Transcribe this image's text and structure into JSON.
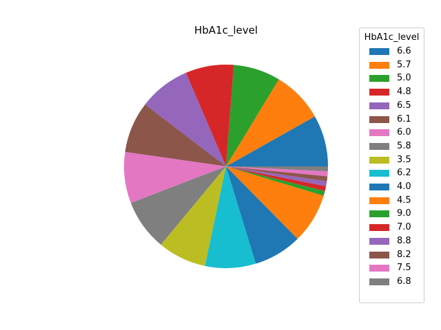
{
  "chart_data": {
    "type": "pie",
    "title": "HbA1c_level",
    "legend": {
      "title": "HbA1c_level",
      "placement": "right"
    },
    "labels": [
      "6.6",
      "5.7",
      "5.0",
      "4.8",
      "6.5",
      "6.1",
      "6.0",
      "5.8",
      "3.5",
      "6.2",
      "4.0",
      "4.5",
      "9.0",
      "7.0",
      "8.8",
      "8.2",
      "7.5",
      "6.8"
    ],
    "values": [
      8.43,
      8.43,
      7.7,
      7.9,
      8.41,
      8.42,
      8.39,
      8.39,
      7.96,
      8.29,
      7.92,
      8.2,
      0.79,
      0.8,
      0.81,
      0.81,
      0.81,
      0.8
    ],
    "colors": [
      "#1f77b4",
      "#ff7f0e",
      "#2ca02c",
      "#d62728",
      "#9467bd",
      "#8c564b",
      "#e377c2",
      "#7f7f7f",
      "#bcbd22",
      "#17becf",
      "#1f77b4",
      "#ff7f0e",
      "#2ca02c",
      "#d62728",
      "#9467bd",
      "#8c564b",
      "#e377c2",
      "#7f7f7f"
    ],
    "start_angle_deg": 0,
    "direction": "counterclockwise"
  }
}
